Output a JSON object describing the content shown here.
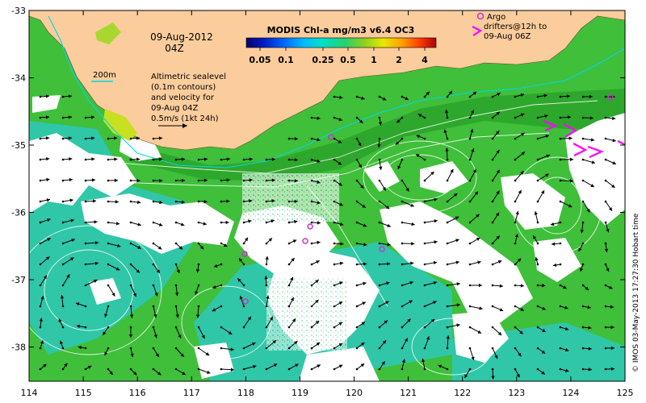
{
  "map": {
    "date_title": "09-Aug-2012",
    "time_title": "04Z",
    "colorbar": {
      "title": "MODIS Chl-a mg/m3 v6.4 OC3",
      "tick_labels": [
        "0.05",
        "0.1",
        "0.25",
        "0.5",
        "1",
        "2",
        "4"
      ],
      "colors": [
        "#08006a",
        "#0020c8",
        "#0068ff",
        "#00b8ff",
        "#00e0c8",
        "#28d070",
        "#8cd020",
        "#e8e800",
        "#ffa000",
        "#ff4000",
        "#b00000"
      ]
    },
    "isobath_label": "200m",
    "altimetry_note": {
      "line1": "Altimetric sealevel",
      "line2": "(0.1m contours)",
      "line3": "and velocity for",
      "line4": "09-Aug 04Z",
      "line5": "0.5m/s (1kt 24h)"
    },
    "drifter_legend": {
      "line1": "Argo",
      "line2": "drifters@12h to",
      "line3": "09-Aug 06Z"
    },
    "credit": "© IMOS 03-May-2013 17:27:30 Hobart time",
    "axes": {
      "lon_ticks": [
        "114",
        "115",
        "116",
        "117",
        "118",
        "119",
        "120",
        "121",
        "122",
        "123",
        "124",
        "125"
      ],
      "lat_ticks": [
        "-33",
        "-34",
        "-35",
        "-36",
        "-37",
        "-38"
      ]
    },
    "colors": {
      "land": "#fbcc9c",
      "ocean_green": "#3fbf3a",
      "ocean_teal": "#2fc7a8",
      "cloud": "#ffffff",
      "drifter": "#cc33cc",
      "isobath": "#00d8e8",
      "arrow": "#000000"
    },
    "icons": {
      "drifter_marker": "circle-icon",
      "drifter_track": "arrowhead-icon",
      "velocity_scale": "arrow-icon"
    }
  }
}
